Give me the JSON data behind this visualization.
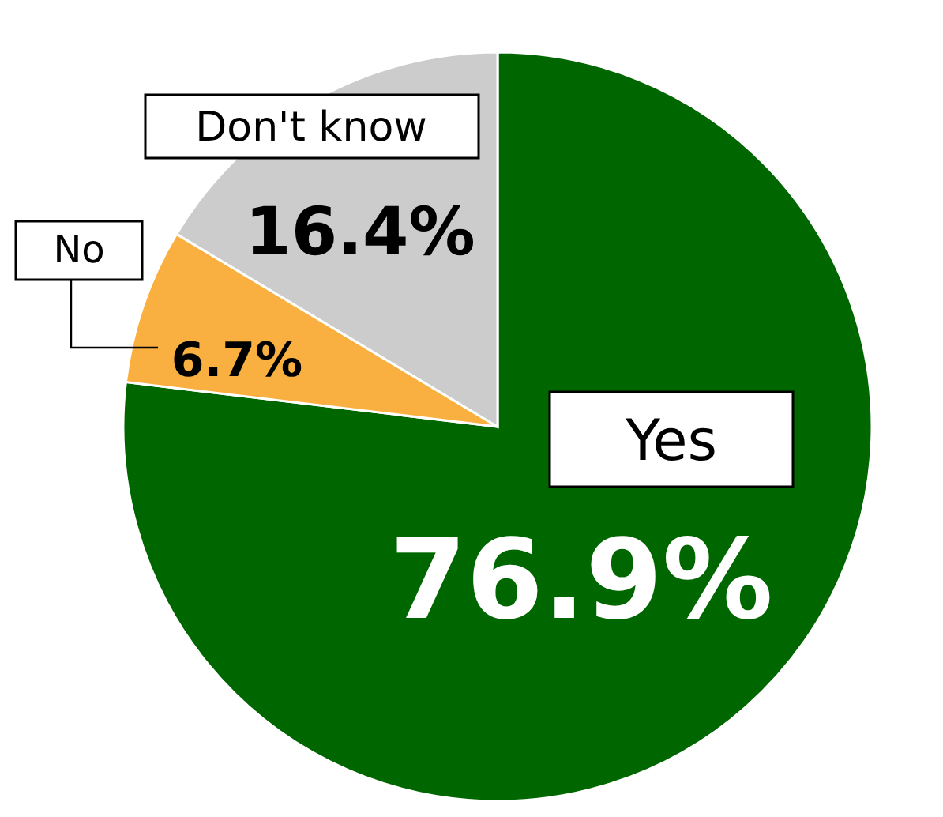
{
  "chart_data": {
    "type": "pie",
    "categories": [
      "Yes",
      "No",
      "Don't know"
    ],
    "values": [
      76.9,
      6.7,
      16.4
    ],
    "colors": [
      "#006600",
      "#f9b040",
      "#cccccc"
    ],
    "value_labels": [
      "76.9%",
      "6.7%",
      "16.4%"
    ]
  }
}
